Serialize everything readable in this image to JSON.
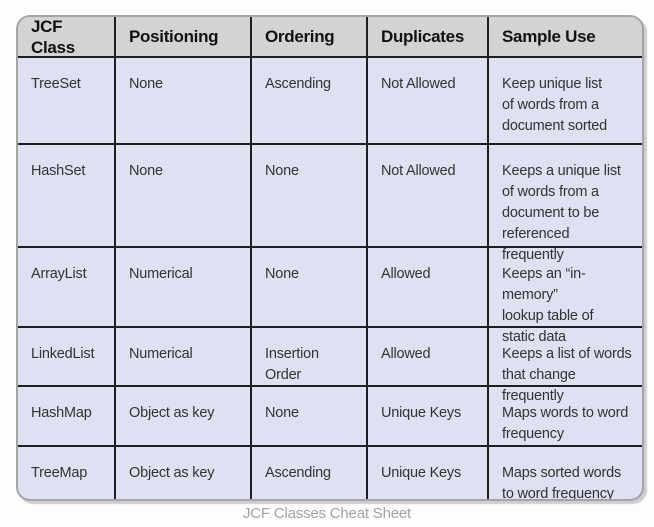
{
  "page": {
    "caption": "JCF Classes Cheat Sheet",
    "colors": {
      "header_bg": "#d3d3d3",
      "body_bg": "#dde1f1",
      "grid_line": "#1f1f1f",
      "outer_border": "#a4a4a4",
      "caption_text": "#a3a3a3",
      "page_bg": "#fdfdfd"
    }
  },
  "table": {
    "columns": [
      "JCF Class",
      "Positioning",
      "Ordering",
      "Duplicates",
      "Sample Use"
    ],
    "rows": [
      {
        "jcf_class": "TreeSet",
        "positioning": "None",
        "ordering": "Ascending",
        "duplicates": "Not Allowed",
        "sample_use": "Keep unique list\nof words from a\ndocument sorted"
      },
      {
        "jcf_class": "HashSet",
        "positioning": "None",
        "ordering": "None",
        "duplicates": "Not Allowed",
        "sample_use": "Keeps a unique list\nof words from a\ndocument to be\nreferenced frequently"
      },
      {
        "jcf_class": "ArrayList",
        "positioning": "Numerical",
        "ordering": "None",
        "duplicates": "Allowed",
        "sample_use": "Keeps an “in-memory”\nlookup table of\nstatic data"
      },
      {
        "jcf_class": "LinkedList",
        "positioning": "Numerical",
        "ordering": "Insertion Order",
        "duplicates": "Allowed",
        "sample_use": "Keeps a list of words\nthat change frequently"
      },
      {
        "jcf_class": "HashMap",
        "positioning": "Object as key",
        "ordering": "None",
        "duplicates": "Unique Keys",
        "sample_use": "Maps words to word\nfrequency"
      },
      {
        "jcf_class": "TreeMap",
        "positioning": "Object as key",
        "ordering": "Ascending",
        "duplicates": "Unique Keys",
        "sample_use": "Maps sorted words\nto word frequency"
      }
    ]
  }
}
